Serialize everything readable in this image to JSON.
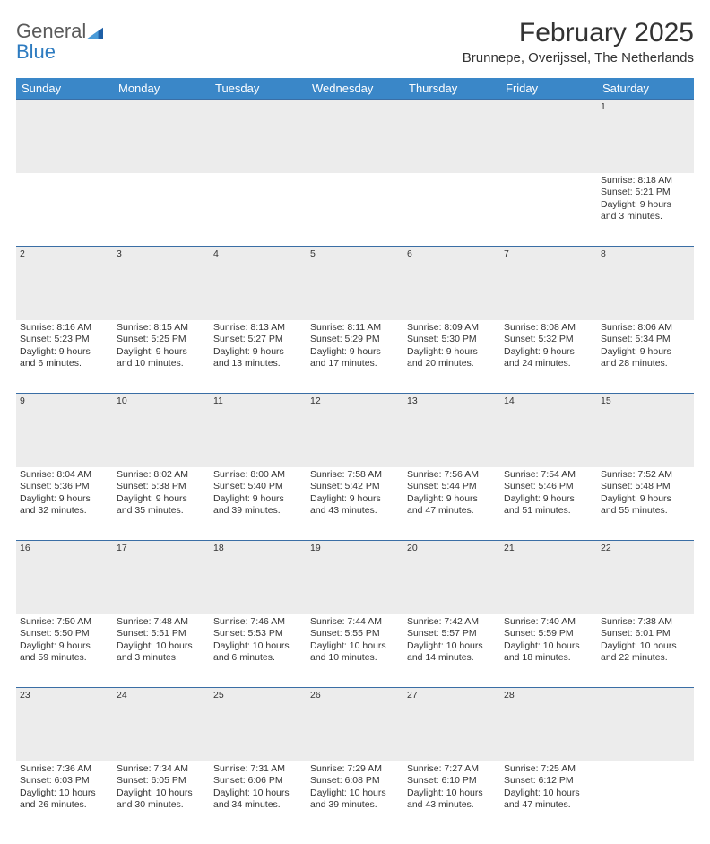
{
  "brand": {
    "name1": "General",
    "name2": "Blue"
  },
  "title": "February 2025",
  "subtitle": "Brunnepe, Overijssel, The Netherlands",
  "colors": {
    "header_bg": "#3a87c8",
    "header_fg": "#ffffff",
    "daynum_bg": "#ececec",
    "rule": "#3a6ea5",
    "text": "#333333",
    "brand_gray": "#5a5a5a",
    "brand_blue": "#2d7bc0"
  },
  "day_headers": [
    "Sunday",
    "Monday",
    "Tuesday",
    "Wednesday",
    "Thursday",
    "Friday",
    "Saturday"
  ],
  "weeks": [
    {
      "nums": [
        "",
        "",
        "",
        "",
        "",
        "",
        "1"
      ],
      "cells": [
        null,
        null,
        null,
        null,
        null,
        null,
        {
          "sunrise": "Sunrise: 8:18 AM",
          "sunset": "Sunset: 5:21 PM",
          "day1": "Daylight: 9 hours",
          "day2": "and 3 minutes."
        }
      ]
    },
    {
      "nums": [
        "2",
        "3",
        "4",
        "5",
        "6",
        "7",
        "8"
      ],
      "cells": [
        {
          "sunrise": "Sunrise: 8:16 AM",
          "sunset": "Sunset: 5:23 PM",
          "day1": "Daylight: 9 hours",
          "day2": "and 6 minutes."
        },
        {
          "sunrise": "Sunrise: 8:15 AM",
          "sunset": "Sunset: 5:25 PM",
          "day1": "Daylight: 9 hours",
          "day2": "and 10 minutes."
        },
        {
          "sunrise": "Sunrise: 8:13 AM",
          "sunset": "Sunset: 5:27 PM",
          "day1": "Daylight: 9 hours",
          "day2": "and 13 minutes."
        },
        {
          "sunrise": "Sunrise: 8:11 AM",
          "sunset": "Sunset: 5:29 PM",
          "day1": "Daylight: 9 hours",
          "day2": "and 17 minutes."
        },
        {
          "sunrise": "Sunrise: 8:09 AM",
          "sunset": "Sunset: 5:30 PM",
          "day1": "Daylight: 9 hours",
          "day2": "and 20 minutes."
        },
        {
          "sunrise": "Sunrise: 8:08 AM",
          "sunset": "Sunset: 5:32 PM",
          "day1": "Daylight: 9 hours",
          "day2": "and 24 minutes."
        },
        {
          "sunrise": "Sunrise: 8:06 AM",
          "sunset": "Sunset: 5:34 PM",
          "day1": "Daylight: 9 hours",
          "day2": "and 28 minutes."
        }
      ]
    },
    {
      "nums": [
        "9",
        "10",
        "11",
        "12",
        "13",
        "14",
        "15"
      ],
      "cells": [
        {
          "sunrise": "Sunrise: 8:04 AM",
          "sunset": "Sunset: 5:36 PM",
          "day1": "Daylight: 9 hours",
          "day2": "and 32 minutes."
        },
        {
          "sunrise": "Sunrise: 8:02 AM",
          "sunset": "Sunset: 5:38 PM",
          "day1": "Daylight: 9 hours",
          "day2": "and 35 minutes."
        },
        {
          "sunrise": "Sunrise: 8:00 AM",
          "sunset": "Sunset: 5:40 PM",
          "day1": "Daylight: 9 hours",
          "day2": "and 39 minutes."
        },
        {
          "sunrise": "Sunrise: 7:58 AM",
          "sunset": "Sunset: 5:42 PM",
          "day1": "Daylight: 9 hours",
          "day2": "and 43 minutes."
        },
        {
          "sunrise": "Sunrise: 7:56 AM",
          "sunset": "Sunset: 5:44 PM",
          "day1": "Daylight: 9 hours",
          "day2": "and 47 minutes."
        },
        {
          "sunrise": "Sunrise: 7:54 AM",
          "sunset": "Sunset: 5:46 PM",
          "day1": "Daylight: 9 hours",
          "day2": "and 51 minutes."
        },
        {
          "sunrise": "Sunrise: 7:52 AM",
          "sunset": "Sunset: 5:48 PM",
          "day1": "Daylight: 9 hours",
          "day2": "and 55 minutes."
        }
      ]
    },
    {
      "nums": [
        "16",
        "17",
        "18",
        "19",
        "20",
        "21",
        "22"
      ],
      "cells": [
        {
          "sunrise": "Sunrise: 7:50 AM",
          "sunset": "Sunset: 5:50 PM",
          "day1": "Daylight: 9 hours",
          "day2": "and 59 minutes."
        },
        {
          "sunrise": "Sunrise: 7:48 AM",
          "sunset": "Sunset: 5:51 PM",
          "day1": "Daylight: 10 hours",
          "day2": "and 3 minutes."
        },
        {
          "sunrise": "Sunrise: 7:46 AM",
          "sunset": "Sunset: 5:53 PM",
          "day1": "Daylight: 10 hours",
          "day2": "and 6 minutes."
        },
        {
          "sunrise": "Sunrise: 7:44 AM",
          "sunset": "Sunset: 5:55 PM",
          "day1": "Daylight: 10 hours",
          "day2": "and 10 minutes."
        },
        {
          "sunrise": "Sunrise: 7:42 AM",
          "sunset": "Sunset: 5:57 PM",
          "day1": "Daylight: 10 hours",
          "day2": "and 14 minutes."
        },
        {
          "sunrise": "Sunrise: 7:40 AM",
          "sunset": "Sunset: 5:59 PM",
          "day1": "Daylight: 10 hours",
          "day2": "and 18 minutes."
        },
        {
          "sunrise": "Sunrise: 7:38 AM",
          "sunset": "Sunset: 6:01 PM",
          "day1": "Daylight: 10 hours",
          "day2": "and 22 minutes."
        }
      ]
    },
    {
      "nums": [
        "23",
        "24",
        "25",
        "26",
        "27",
        "28",
        ""
      ],
      "cells": [
        {
          "sunrise": "Sunrise: 7:36 AM",
          "sunset": "Sunset: 6:03 PM",
          "day1": "Daylight: 10 hours",
          "day2": "and 26 minutes."
        },
        {
          "sunrise": "Sunrise: 7:34 AM",
          "sunset": "Sunset: 6:05 PM",
          "day1": "Daylight: 10 hours",
          "day2": "and 30 minutes."
        },
        {
          "sunrise": "Sunrise: 7:31 AM",
          "sunset": "Sunset: 6:06 PM",
          "day1": "Daylight: 10 hours",
          "day2": "and 34 minutes."
        },
        {
          "sunrise": "Sunrise: 7:29 AM",
          "sunset": "Sunset: 6:08 PM",
          "day1": "Daylight: 10 hours",
          "day2": "and 39 minutes."
        },
        {
          "sunrise": "Sunrise: 7:27 AM",
          "sunset": "Sunset: 6:10 PM",
          "day1": "Daylight: 10 hours",
          "day2": "and 43 minutes."
        },
        {
          "sunrise": "Sunrise: 7:25 AM",
          "sunset": "Sunset: 6:12 PM",
          "day1": "Daylight: 10 hours",
          "day2": "and 47 minutes."
        },
        null
      ]
    }
  ]
}
